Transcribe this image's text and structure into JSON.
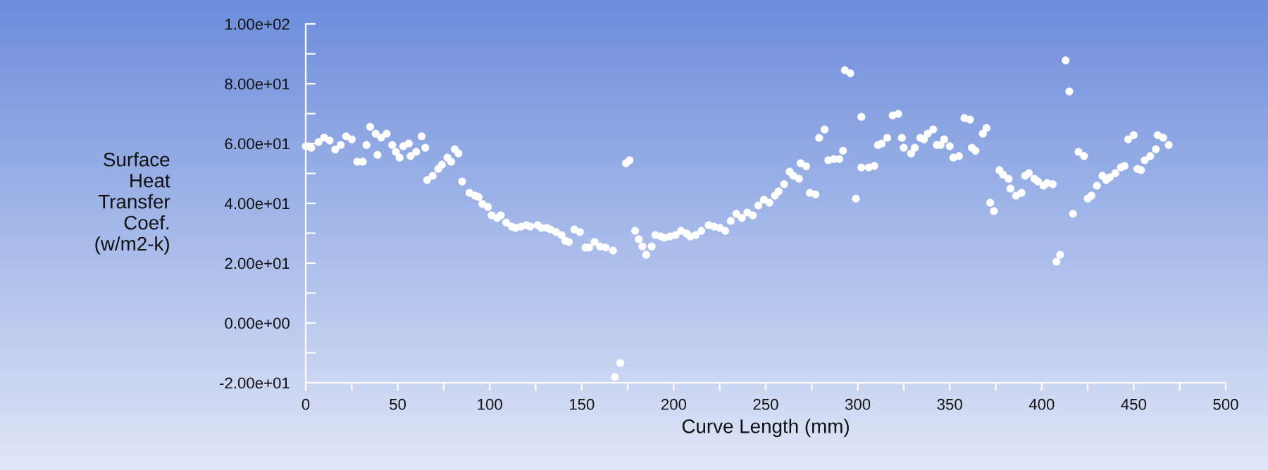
{
  "chart_data": {
    "type": "scatter",
    "xlabel": "Curve Length (mm)",
    "ylabel": "Surface\nHeat\nTransfer\nCoef.\n(w/m2-k)",
    "x": [
      0,
      3,
      7,
      10,
      13,
      16,
      19,
      22,
      25,
      28,
      31,
      33,
      35,
      38,
      39,
      41,
      44,
      47,
      49,
      51,
      53,
      56,
      57,
      60,
      63,
      65,
      66,
      69,
      72,
      74,
      77,
      79,
      81,
      83,
      85,
      89,
      92,
      94,
      96,
      99,
      101,
      104,
      106,
      109,
      112,
      114,
      117,
      120,
      122,
      126,
      128,
      131,
      133,
      136,
      139,
      141,
      143,
      146,
      149,
      152,
      154,
      157,
      160,
      163,
      167,
      168,
      171,
      174,
      176,
      179,
      181,
      183,
      185,
      188,
      190,
      193,
      195,
      198,
      201,
      204,
      207,
      209,
      212,
      215,
      219,
      222,
      225,
      228,
      231,
      234,
      237,
      240,
      243,
      246,
      249,
      252,
      255,
      257,
      260,
      263,
      265,
      268,
      269,
      272,
      274,
      277,
      279,
      282,
      284,
      287,
      290,
      292,
      293,
      296,
      299,
      302,
      302,
      306,
      309,
      311,
      313,
      316,
      319,
      322,
      324,
      325,
      329,
      331,
      334,
      336,
      338,
      341,
      343,
      345,
      347,
      350,
      352,
      355,
      358,
      361,
      362,
      364,
      368,
      370,
      372,
      374,
      377,
      379,
      382,
      383,
      386,
      389,
      391,
      393,
      396,
      398,
      401,
      403,
      406,
      408,
      410,
      413,
      415,
      417,
      420,
      423,
      425,
      427,
      430,
      433,
      435,
      437,
      440,
      443,
      445,
      447,
      450,
      452,
      454,
      456,
      459,
      462,
      463,
      466,
      469
    ],
    "series": [
      {
        "color": "#ffffff",
        "values": [
          59.1,
          58.6,
          60.5,
          62,
          61,
          58,
          59.5,
          62.4,
          61.4,
          53.9,
          53.9,
          59.5,
          65.6,
          63.3,
          56.2,
          62,
          63.3,
          59.5,
          57.2,
          55.3,
          59.1,
          60,
          55.8,
          57.2,
          62.4,
          58.6,
          47.8,
          49.2,
          51.5,
          52.9,
          55.3,
          53.9,
          58.1,
          56.7,
          47.3,
          43.5,
          42.6,
          42.1,
          39.8,
          38.8,
          36,
          35.1,
          36,
          33.6,
          32.2,
          31.8,
          32.2,
          32.7,
          32.2,
          32.7,
          31.8,
          31.8,
          31.3,
          30.4,
          29.4,
          27.5,
          27.1,
          31.3,
          30.4,
          25.2,
          25.2,
          27.1,
          25.6,
          25.2,
          24.2,
          -18.1,
          -13.4,
          53.4,
          54.4,
          30.8,
          28,
          25.6,
          22.8,
          25.6,
          29.4,
          28.9,
          28.5,
          28.9,
          29.4,
          30.8,
          29.9,
          28.9,
          29.4,
          30.8,
          32.7,
          32.2,
          31.8,
          30.8,
          34.1,
          36.5,
          35.1,
          36.9,
          36,
          39.3,
          41.2,
          40.2,
          42.6,
          44,
          46.4,
          50.6,
          49.2,
          48.2,
          53.4,
          52.4,
          43.5,
          43,
          61.9,
          64.7,
          54.4,
          54.8,
          54.8,
          57.6,
          84.5,
          83.5,
          41.6,
          68.9,
          52,
          52,
          52.5,
          59.5,
          60,
          61.9,
          69.4,
          69.9,
          61.9,
          58.6,
          56.7,
          58.6,
          61.9,
          61.4,
          63.3,
          64.7,
          59.5,
          59.5,
          61.4,
          59.1,
          55.3,
          55.8,
          68.5,
          68,
          58.6,
          57.6,
          63.3,
          65.2,
          40.2,
          37.4,
          51.1,
          49.6,
          48.2,
          44.9,
          42.6,
          43.5,
          49.2,
          50.1,
          48.2,
          47.3,
          45.9,
          46.8,
          46.4,
          20.5,
          22.8,
          87.8,
          77.4,
          36.5,
          57.2,
          55.8,
          41.6,
          42.6,
          45.9,
          49.2,
          47.8,
          48.7,
          50.1,
          52,
          52.5,
          61.4,
          62.8,
          51.5,
          51.1,
          54.4,
          55.8,
          58.1,
          62.8,
          61.9,
          59.5
        ]
      }
    ],
    "marker": "circle",
    "grid": false,
    "legend": false,
    "xlim": [
      0,
      500
    ],
    "xticks": [
      0,
      {
        "value": 25,
        "label": null
      },
      50,
      {
        "value": 75,
        "label": null
      },
      100,
      {
        "value": 125,
        "label": null
      },
      150,
      {
        "value": 175,
        "label": null
      },
      200,
      {
        "value": 225,
        "label": null
      },
      250,
      {
        "value": 275,
        "label": null
      },
      300,
      {
        "value": 325,
        "label": null
      },
      350,
      {
        "value": 375,
        "label": null
      },
      400,
      {
        "value": 425,
        "label": null
      },
      450,
      {
        "value": 475,
        "label": null
      },
      500
    ],
    "ylim": [
      -20,
      100
    ],
    "yticks": [
      {
        "value": -20,
        "label": "-2.00e+01"
      },
      {
        "value": -10,
        "label": null
      },
      {
        "value": 0,
        "label": "0.00e+00"
      },
      {
        "value": 10,
        "label": null
      },
      {
        "value": 20,
        "label": "2.00e+01"
      },
      {
        "value": 30,
        "label": null
      },
      {
        "value": 40,
        "label": "4.00e+01"
      },
      {
        "value": 50,
        "label": null
      },
      {
        "value": 60,
        "label": "6.00e+01"
      },
      {
        "value": 70,
        "label": null
      },
      {
        "value": 80,
        "label": "8.00e+01"
      },
      {
        "value": 90,
        "label": null
      },
      {
        "value": 100,
        "label": "1.00e+02"
      }
    ]
  }
}
